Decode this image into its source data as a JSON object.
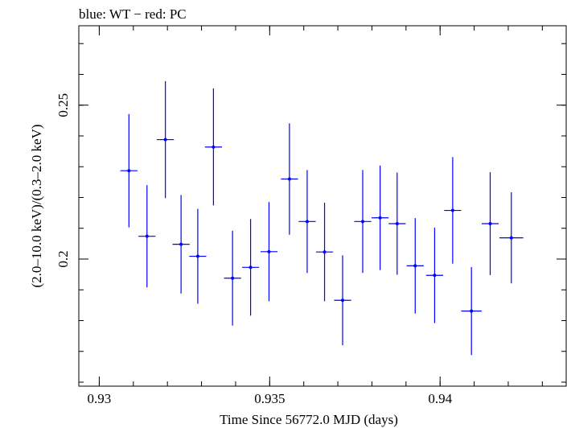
{
  "chart_data": {
    "type": "scatter",
    "title": "blue: WT − red: PC",
    "xlabel": "Time Since 56772.0 MJD (days)",
    "ylabel": "(2.0–10.0 keV)/(0.3–2.0 keV)",
    "xlim": [
      0.9294,
      0.9437
    ],
    "ylim": [
      0.1587,
      0.2758
    ],
    "x_ticks": [
      {
        "value": 0.93,
        "label": "0.93"
      },
      {
        "value": 0.935,
        "label": "0.935"
      },
      {
        "value": 0.94,
        "label": "0.94"
      }
    ],
    "y_ticks": [
      {
        "value": 0.25,
        "label": "0.25"
      },
      {
        "value": 0.2,
        "label": "0.2"
      }
    ],
    "grid": false,
    "series": [
      {
        "name": "WT",
        "color": "#0000ff",
        "points": [
          {
            "x": 0.93087,
            "xerr": 0.00025,
            "y": 0.2287,
            "yerr": 0.0184
          },
          {
            "x": 0.9314,
            "xerr": 0.00025,
            "y": 0.2074,
            "yerr": 0.0166
          },
          {
            "x": 0.93194,
            "xerr": 0.00025,
            "y": 0.2388,
            "yerr": 0.019
          },
          {
            "x": 0.9324,
            "xerr": 0.00025,
            "y": 0.2048,
            "yerr": 0.016
          },
          {
            "x": 0.93289,
            "xerr": 0.00025,
            "y": 0.2009,
            "yerr": 0.0154
          },
          {
            "x": 0.93335,
            "xerr": 0.00025,
            "y": 0.2364,
            "yerr": 0.019
          },
          {
            "x": 0.93391,
            "xerr": 0.00025,
            "y": 0.1938,
            "yerr": 0.0154
          },
          {
            "x": 0.93444,
            "xerr": 0.00025,
            "y": 0.1973,
            "yerr": 0.0157
          },
          {
            "x": 0.93498,
            "xerr": 0.00025,
            "y": 0.2024,
            "yerr": 0.0161
          },
          {
            "x": 0.93558,
            "xerr": 0.00025,
            "y": 0.226,
            "yerr": 0.0181
          },
          {
            "x": 0.9361,
            "xerr": 0.00025,
            "y": 0.2122,
            "yerr": 0.0167
          },
          {
            "x": 0.93661,
            "xerr": 0.00025,
            "y": 0.2023,
            "yerr": 0.016
          },
          {
            "x": 0.93714,
            "xerr": 0.00025,
            "y": 0.1866,
            "yerr": 0.0146
          },
          {
            "x": 0.93773,
            "xerr": 0.00025,
            "y": 0.2122,
            "yerr": 0.0167
          },
          {
            "x": 0.93824,
            "xerr": 0.00025,
            "y": 0.2134,
            "yerr": 0.017
          },
          {
            "x": 0.93874,
            "xerr": 0.00025,
            "y": 0.2115,
            "yerr": 0.0166
          },
          {
            "x": 0.93927,
            "xerr": 0.00025,
            "y": 0.1978,
            "yerr": 0.0155
          },
          {
            "x": 0.93984,
            "xerr": 0.00025,
            "y": 0.1947,
            "yerr": 0.0155
          },
          {
            "x": 0.94037,
            "xerr": 0.00025,
            "y": 0.2158,
            "yerr": 0.0173
          },
          {
            "x": 0.94092,
            "xerr": 0.0003,
            "y": 0.1831,
            "yerr": 0.0143
          },
          {
            "x": 0.94147,
            "xerr": 0.00025,
            "y": 0.2115,
            "yerr": 0.0167
          },
          {
            "x": 0.94209,
            "xerr": 0.00035,
            "y": 0.2069,
            "yerr": 0.0148
          }
        ]
      }
    ]
  }
}
